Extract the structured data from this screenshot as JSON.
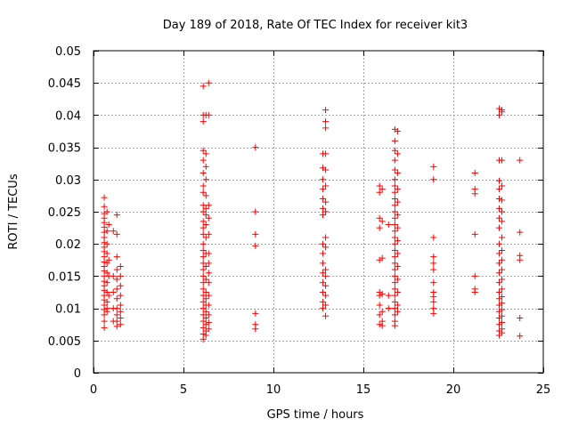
{
  "chart_data": {
    "type": "scatter",
    "title": "Day 189 of 2018, Rate Of TEC Index for receiver kit3",
    "xlabel": "GPS time / hours",
    "ylabel": "ROTI / TECUs",
    "xlim": [
      0,
      25
    ],
    "ylim": [
      0,
      0.05
    ],
    "xticks": [
      0,
      5,
      10,
      15,
      20,
      25
    ],
    "yticks": [
      0,
      0.005,
      0.01,
      0.015,
      0.02,
      0.025,
      0.03,
      0.035,
      0.04,
      0.045,
      0.05
    ],
    "xtick_labels": [
      "0",
      "5",
      "10",
      "15",
      "20",
      "25"
    ],
    "ytick_labels": [
      "0",
      "0.005",
      "0.01",
      "0.015",
      "0.02",
      "0.025",
      "0.03",
      "0.035",
      "0.04",
      "0.045",
      "0.05"
    ],
    "grid": true,
    "marker": "+",
    "color": "#ff0000",
    "series": [
      {
        "name": "ROTI",
        "points": [
          [
            0.6,
            0.0272
          ],
          [
            0.6,
            0.0258
          ],
          [
            0.6,
            0.0247
          ],
          [
            0.6,
            0.024
          ],
          [
            0.6,
            0.0233
          ],
          [
            0.6,
            0.0226
          ],
          [
            0.6,
            0.0218
          ],
          [
            0.6,
            0.021
          ],
          [
            0.6,
            0.0202
          ],
          [
            0.6,
            0.0195
          ],
          [
            0.6,
            0.0188
          ],
          [
            0.6,
            0.018
          ],
          [
            0.6,
            0.0172
          ],
          [
            0.6,
            0.0165
          ],
          [
            0.6,
            0.0158
          ],
          [
            0.6,
            0.015
          ],
          [
            0.6,
            0.0142
          ],
          [
            0.6,
            0.0135
          ],
          [
            0.6,
            0.0128
          ],
          [
            0.6,
            0.012
          ],
          [
            0.6,
            0.0113
          ],
          [
            0.6,
            0.0105
          ],
          [
            0.6,
            0.0098
          ],
          [
            0.6,
            0.009
          ],
          [
            0.6,
            0.008
          ],
          [
            0.6,
            0.007
          ],
          [
            0.75,
            0.025
          ],
          [
            0.75,
            0.022
          ],
          [
            0.75,
            0.02
          ],
          [
            0.75,
            0.0185
          ],
          [
            0.75,
            0.017
          ],
          [
            0.75,
            0.0155
          ],
          [
            0.75,
            0.014
          ],
          [
            0.75,
            0.0125
          ],
          [
            0.75,
            0.011
          ],
          [
            0.75,
            0.01
          ],
          [
            0.75,
            0.0095
          ],
          [
            0.85,
            0.023
          ],
          [
            0.85,
            0.0175
          ],
          [
            0.85,
            0.015
          ],
          [
            0.85,
            0.012
          ],
          [
            1.1,
            0.022
          ],
          [
            1.1,
            0.015
          ],
          [
            1.1,
            0.0125
          ],
          [
            1.1,
            0.01
          ],
          [
            1.1,
            0.008
          ],
          [
            1.3,
            0.0245
          ],
          [
            1.3,
            0.0215
          ],
          [
            1.3,
            0.018
          ],
          [
            1.3,
            0.016
          ],
          [
            1.3,
            0.0145
          ],
          [
            1.3,
            0.013
          ],
          [
            1.3,
            0.0115
          ],
          [
            1.3,
            0.01
          ],
          [
            1.3,
            0.009
          ],
          [
            1.3,
            0.008
          ],
          [
            1.3,
            0.0072
          ],
          [
            1.5,
            0.0165
          ],
          [
            1.5,
            0.015
          ],
          [
            1.5,
            0.0135
          ],
          [
            1.5,
            0.012
          ],
          [
            1.5,
            0.0105
          ],
          [
            1.5,
            0.0095
          ],
          [
            1.5,
            0.0085
          ],
          [
            1.5,
            0.0075
          ],
          [
            6.1,
            0.0445
          ],
          [
            6.1,
            0.04
          ],
          [
            6.1,
            0.039
          ],
          [
            6.1,
            0.0345
          ],
          [
            6.1,
            0.033
          ],
          [
            6.1,
            0.031
          ],
          [
            6.1,
            0.029
          ],
          [
            6.1,
            0.028
          ],
          [
            6.1,
            0.026
          ],
          [
            6.1,
            0.025
          ],
          [
            6.1,
            0.0235
          ],
          [
            6.1,
            0.0225
          ],
          [
            6.1,
            0.0215
          ],
          [
            6.1,
            0.02
          ],
          [
            6.1,
            0.019
          ],
          [
            6.1,
            0.018
          ],
          [
            6.1,
            0.017
          ],
          [
            6.1,
            0.016
          ],
          [
            6.1,
            0.015
          ],
          [
            6.1,
            0.014
          ],
          [
            6.1,
            0.013
          ],
          [
            6.1,
            0.012
          ],
          [
            6.1,
            0.011
          ],
          [
            6.1,
            0.01
          ],
          [
            6.1,
            0.009
          ],
          [
            6.1,
            0.008
          ],
          [
            6.1,
            0.007
          ],
          [
            6.1,
            0.006
          ],
          [
            6.1,
            0.0052
          ],
          [
            6.25,
            0.04
          ],
          [
            6.25,
            0.034
          ],
          [
            6.25,
            0.032
          ],
          [
            6.25,
            0.03
          ],
          [
            6.25,
            0.0275
          ],
          [
            6.25,
            0.0255
          ],
          [
            6.25,
            0.0245
          ],
          [
            6.25,
            0.023
          ],
          [
            6.25,
            0.021
          ],
          [
            6.25,
            0.0185
          ],
          [
            6.25,
            0.0165
          ],
          [
            6.25,
            0.0145
          ],
          [
            6.25,
            0.0125
          ],
          [
            6.25,
            0.0115
          ],
          [
            6.25,
            0.0105
          ],
          [
            6.25,
            0.0095
          ],
          [
            6.25,
            0.0085
          ],
          [
            6.25,
            0.0075
          ],
          [
            6.25,
            0.0065
          ],
          [
            6.25,
            0.0058
          ],
          [
            6.4,
            0.045
          ],
          [
            6.4,
            0.04
          ],
          [
            6.4,
            0.026
          ],
          [
            6.4,
            0.024
          ],
          [
            6.4,
            0.0215
          ],
          [
            6.4,
            0.0185
          ],
          [
            6.4,
            0.017
          ],
          [
            6.4,
            0.0155
          ],
          [
            6.4,
            0.014
          ],
          [
            6.4,
            0.012
          ],
          [
            6.4,
            0.0105
          ],
          [
            6.4,
            0.009
          ],
          [
            6.4,
            0.0078
          ],
          [
            6.4,
            0.0068
          ],
          [
            9.0,
            0.035
          ],
          [
            9.0,
            0.025
          ],
          [
            9.0,
            0.0215
          ],
          [
            9.0,
            0.0197
          ],
          [
            9.0,
            0.0092
          ],
          [
            9.0,
            0.0075
          ],
          [
            9.0,
            0.0068
          ],
          [
            12.75,
            0.034
          ],
          [
            12.75,
            0.0318
          ],
          [
            12.75,
            0.03
          ],
          [
            12.75,
            0.0285
          ],
          [
            12.75,
            0.027
          ],
          [
            12.75,
            0.0255
          ],
          [
            12.75,
            0.0245
          ],
          [
            12.75,
            0.02
          ],
          [
            12.75,
            0.0185
          ],
          [
            12.75,
            0.017
          ],
          [
            12.75,
            0.0155
          ],
          [
            12.75,
            0.014
          ],
          [
            12.75,
            0.0125
          ],
          [
            12.75,
            0.011
          ],
          [
            12.75,
            0.01
          ],
          [
            12.9,
            0.0408
          ],
          [
            12.9,
            0.039
          ],
          [
            12.9,
            0.038
          ],
          [
            12.9,
            0.034
          ],
          [
            12.9,
            0.0315
          ],
          [
            12.9,
            0.029
          ],
          [
            12.9,
            0.0265
          ],
          [
            12.9,
            0.025
          ],
          [
            12.9,
            0.021
          ],
          [
            12.9,
            0.0195
          ],
          [
            12.9,
            0.016
          ],
          [
            12.9,
            0.015
          ],
          [
            12.9,
            0.0135
          ],
          [
            12.9,
            0.012
          ],
          [
            12.9,
            0.0105
          ],
          [
            12.9,
            0.0088
          ],
          [
            15.9,
            0.029
          ],
          [
            15.9,
            0.028
          ],
          [
            15.9,
            0.024
          ],
          [
            15.9,
            0.0225
          ],
          [
            15.9,
            0.0175
          ],
          [
            15.9,
            0.0125
          ],
          [
            15.9,
            0.012
          ],
          [
            15.9,
            0.0105
          ],
          [
            15.9,
            0.009
          ],
          [
            15.9,
            0.0075
          ],
          [
            16.05,
            0.0285
          ],
          [
            16.05,
            0.0235
          ],
          [
            16.05,
            0.0178
          ],
          [
            16.05,
            0.0122
          ],
          [
            16.05,
            0.0095
          ],
          [
            16.05,
            0.008
          ],
          [
            16.05,
            0.0073
          ],
          [
            16.4,
            0.023
          ],
          [
            16.4,
            0.012
          ],
          [
            16.4,
            0.01
          ],
          [
            16.75,
            0.0378
          ],
          [
            16.75,
            0.036
          ],
          [
            16.75,
            0.0345
          ],
          [
            16.75,
            0.033
          ],
          [
            16.75,
            0.0315
          ],
          [
            16.75,
            0.03
          ],
          [
            16.75,
            0.029
          ],
          [
            16.75,
            0.028
          ],
          [
            16.75,
            0.027
          ],
          [
            16.75,
            0.026
          ],
          [
            16.75,
            0.025
          ],
          [
            16.75,
            0.024
          ],
          [
            16.75,
            0.023
          ],
          [
            16.75,
            0.022
          ],
          [
            16.75,
            0.021
          ],
          [
            16.75,
            0.02
          ],
          [
            16.75,
            0.019
          ],
          [
            16.75,
            0.018
          ],
          [
            16.75,
            0.017
          ],
          [
            16.75,
            0.016
          ],
          [
            16.75,
            0.015
          ],
          [
            16.75,
            0.014
          ],
          [
            16.75,
            0.013
          ],
          [
            16.75,
            0.012
          ],
          [
            16.75,
            0.011
          ],
          [
            16.75,
            0.01
          ],
          [
            16.75,
            0.009
          ],
          [
            16.75,
            0.008
          ],
          [
            16.75,
            0.0073
          ],
          [
            16.9,
            0.0375
          ],
          [
            16.9,
            0.034
          ],
          [
            16.9,
            0.031
          ],
          [
            16.9,
            0.0285
          ],
          [
            16.9,
            0.0265
          ],
          [
            16.9,
            0.0245
          ],
          [
            16.9,
            0.0225
          ],
          [
            16.9,
            0.0205
          ],
          [
            16.9,
            0.0185
          ],
          [
            16.9,
            0.0165
          ],
          [
            16.9,
            0.0145
          ],
          [
            16.9,
            0.0125
          ],
          [
            16.9,
            0.0105
          ],
          [
            16.9,
            0.0095
          ],
          [
            18.9,
            0.032
          ],
          [
            18.9,
            0.03
          ],
          [
            18.9,
            0.021
          ],
          [
            18.9,
            0.018
          ],
          [
            18.9,
            0.017
          ],
          [
            18.9,
            0.016
          ],
          [
            18.9,
            0.014
          ],
          [
            18.9,
            0.0125
          ],
          [
            18.9,
            0.0118
          ],
          [
            18.9,
            0.011
          ],
          [
            18.9,
            0.01
          ],
          [
            18.9,
            0.0092
          ],
          [
            21.2,
            0.031
          ],
          [
            21.2,
            0.0285
          ],
          [
            21.2,
            0.0278
          ],
          [
            21.2,
            0.0215
          ],
          [
            21.2,
            0.015
          ],
          [
            21.2,
            0.013
          ],
          [
            21.2,
            0.0125
          ],
          [
            22.55,
            0.041
          ],
          [
            22.55,
            0.04
          ],
          [
            22.55,
            0.033
          ],
          [
            22.55,
            0.0298
          ],
          [
            22.55,
            0.0285
          ],
          [
            22.55,
            0.027
          ],
          [
            22.55,
            0.0255
          ],
          [
            22.55,
            0.024
          ],
          [
            22.55,
            0.0225
          ],
          [
            22.55,
            0.02
          ],
          [
            22.55,
            0.0185
          ],
          [
            22.55,
            0.017
          ],
          [
            22.55,
            0.0155
          ],
          [
            22.55,
            0.014
          ],
          [
            22.55,
            0.0125
          ],
          [
            22.55,
            0.0115
          ],
          [
            22.55,
            0.0105
          ],
          [
            22.55,
            0.0095
          ],
          [
            22.55,
            0.0085
          ],
          [
            22.55,
            0.0075
          ],
          [
            22.55,
            0.0065
          ],
          [
            22.55,
            0.0058
          ],
          [
            22.7,
            0.0408
          ],
          [
            22.7,
            0.0405
          ],
          [
            22.7,
            0.033
          ],
          [
            22.7,
            0.029
          ],
          [
            22.7,
            0.0268
          ],
          [
            22.7,
            0.025
          ],
          [
            22.7,
            0.0235
          ],
          [
            22.7,
            0.021
          ],
          [
            22.7,
            0.019
          ],
          [
            22.7,
            0.0175
          ],
          [
            22.7,
            0.016
          ],
          [
            22.7,
            0.0145
          ],
          [
            22.7,
            0.013
          ],
          [
            22.7,
            0.0118
          ],
          [
            22.7,
            0.0108
          ],
          [
            22.7,
            0.0098
          ],
          [
            22.7,
            0.0088
          ],
          [
            22.7,
            0.0078
          ],
          [
            22.7,
            0.0068
          ],
          [
            22.7,
            0.0062
          ],
          [
            23.7,
            0.033
          ],
          [
            23.7,
            0.0218
          ],
          [
            23.7,
            0.0182
          ],
          [
            23.7,
            0.0175
          ],
          [
            23.7,
            0.0085
          ],
          [
            23.7,
            0.0057
          ]
        ]
      }
    ]
  }
}
